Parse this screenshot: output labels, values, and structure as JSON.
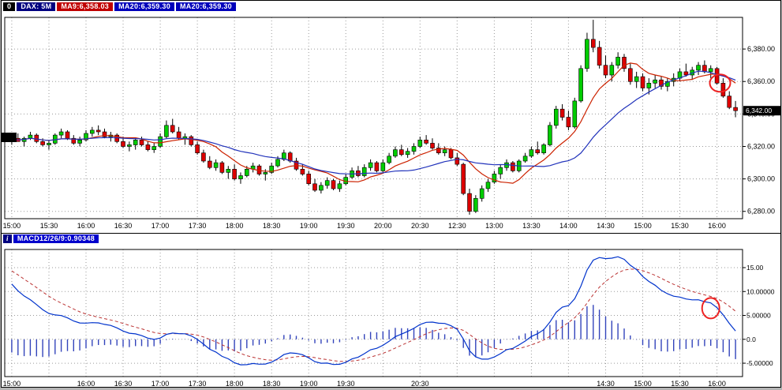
{
  "header": {
    "index_button": "0",
    "symbol": "DAX: 5M",
    "ma9": "MA9:6,358.03",
    "ma20": "MA20:6,359.30",
    "ma20b": "MA20:6,359.30"
  },
  "macd_header": {
    "icon": "i",
    "label": "MACD12/26/9:0.90348"
  },
  "chart_data": [
    {
      "type": "candlestick",
      "title": "DAX 5M intraday with MA9 / MA20",
      "x_labels": [
        "15:00",
        "15:30",
        "16:00",
        "16:30",
        "17:00",
        "17:30",
        "18:00",
        "18:30",
        "19:00",
        "19:30",
        "20:00",
        "20:30",
        "12:30",
        "13:00",
        "13:30",
        "14:00",
        "14:30",
        "15:00",
        "15:30",
        "16:00"
      ],
      "bars_per_label": 6,
      "y_ticks": [
        {
          "v": 6380,
          "label": "6,380.00"
        },
        {
          "v": 6360,
          "label": "6,360.00"
        },
        {
          "v": 6340,
          "label": "6,340.00"
        },
        {
          "v": 6320,
          "label": "6,320.00"
        },
        {
          "v": 6300,
          "label": "6,300.00"
        },
        {
          "v": 6280,
          "label": "6,280.00"
        }
      ],
      "ylim": [
        6275.5,
        6399.5
      ],
      "grid": true,
      "up_color": "#00cc00",
      "down_color": "#dd0000",
      "candles_ohlc": [
        [
          6324,
          6327,
          6321,
          6325
        ],
        [
          6325,
          6328,
          6323,
          6323
        ],
        [
          6323,
          6326,
          6320,
          6325
        ],
        [
          6325,
          6329,
          6324,
          6327
        ],
        [
          6327,
          6328,
          6322,
          6323
        ],
        [
          6323,
          6325,
          6320,
          6321
        ],
        [
          6321,
          6324,
          6318,
          6322
        ],
        [
          6322,
          6328,
          6321,
          6327
        ],
        [
          6327,
          6331,
          6325,
          6329
        ],
        [
          6329,
          6330,
          6324,
          6325
        ],
        [
          6325,
          6327,
          6321,
          6322
        ],
        [
          6322,
          6326,
          6320,
          6324
        ],
        [
          6324,
          6330,
          6323,
          6328
        ],
        [
          6328,
          6332,
          6326,
          6330
        ],
        [
          6330,
          6333,
          6327,
          6329
        ],
        [
          6329,
          6331,
          6325,
          6326
        ],
        [
          6326,
          6329,
          6323,
          6327
        ],
        [
          6327,
          6328,
          6322,
          6323
        ],
        [
          6323,
          6326,
          6319,
          6320
        ],
        [
          6320,
          6323,
          6317,
          6321
        ],
        [
          6321,
          6325,
          6318,
          6324
        ],
        [
          6324,
          6326,
          6320,
          6321
        ],
        [
          6321,
          6323,
          6317,
          6318
        ],
        [
          6318,
          6322,
          6316,
          6320
        ],
        [
          6320,
          6328,
          6319,
          6326
        ],
        [
          6326,
          6336,
          6325,
          6333
        ],
        [
          6333,
          6337,
          6328,
          6329
        ],
        [
          6329,
          6332,
          6324,
          6325
        ],
        [
          6325,
          6328,
          6321,
          6326
        ],
        [
          6326,
          6327,
          6320,
          6321
        ],
        [
          6321,
          6323,
          6315,
          6316
        ],
        [
          6316,
          6318,
          6310,
          6311
        ],
        [
          6311,
          6314,
          6306,
          6307
        ],
        [
          6307,
          6312,
          6305,
          6310
        ],
        [
          6310,
          6311,
          6303,
          6304
        ],
        [
          6304,
          6308,
          6300,
          6306
        ],
        [
          6306,
          6309,
          6299,
          6300
        ],
        [
          6300,
          6304,
          6297,
          6302
        ],
        [
          6302,
          6308,
          6301,
          6306
        ],
        [
          6306,
          6310,
          6304,
          6308
        ],
        [
          6308,
          6309,
          6302,
          6303
        ],
        [
          6303,
          6306,
          6299,
          6304
        ],
        [
          6304,
          6310,
          6303,
          6308
        ],
        [
          6308,
          6314,
          6307,
          6312
        ],
        [
          6312,
          6318,
          6311,
          6316
        ],
        [
          6316,
          6317,
          6310,
          6311
        ],
        [
          6311,
          6313,
          6305,
          6306
        ],
        [
          6306,
          6309,
          6302,
          6303
        ],
        [
          6303,
          6305,
          6296,
          6297
        ],
        [
          6297,
          6300,
          6292,
          6293
        ],
        [
          6293,
          6298,
          6291,
          6296
        ],
        [
          6296,
          6301,
          6294,
          6299
        ],
        [
          6299,
          6300,
          6293,
          6294
        ],
        [
          6294,
          6299,
          6292,
          6297
        ],
        [
          6297,
          6303,
          6296,
          6301
        ],
        [
          6301,
          6307,
          6300,
          6305
        ],
        [
          6305,
          6308,
          6301,
          6302
        ],
        [
          6302,
          6309,
          6301,
          6307
        ],
        [
          6307,
          6312,
          6305,
          6310
        ],
        [
          6310,
          6311,
          6304,
          6305
        ],
        [
          6305,
          6312,
          6304,
          6310
        ],
        [
          6310,
          6316,
          6309,
          6314
        ],
        [
          6314,
          6320,
          6313,
          6318
        ],
        [
          6318,
          6321,
          6314,
          6315
        ],
        [
          6315,
          6319,
          6313,
          6317
        ],
        [
          6317,
          6322,
          6315,
          6320
        ],
        [
          6320,
          6326,
          6319,
          6324
        ],
        [
          6324,
          6327,
          6321,
          6322
        ],
        [
          6322,
          6325,
          6318,
          6319
        ],
        [
          6319,
          6322,
          6315,
          6316
        ],
        [
          6316,
          6320,
          6314,
          6318
        ],
        [
          6318,
          6319,
          6312,
          6313
        ],
        [
          6313,
          6316,
          6308,
          6309
        ],
        [
          6309,
          6310,
          6290,
          6291
        ],
        [
          6291,
          6294,
          6278,
          6280
        ],
        [
          6280,
          6290,
          6279,
          6288
        ],
        [
          6288,
          6296,
          6286,
          6294
        ],
        [
          6294,
          6300,
          6292,
          6298
        ],
        [
          6298,
          6305,
          6297,
          6303
        ],
        [
          6303,
          6309,
          6300,
          6307
        ],
        [
          6307,
          6312,
          6305,
          6310
        ],
        [
          6310,
          6311,
          6304,
          6305
        ],
        [
          6305,
          6312,
          6304,
          6311
        ],
        [
          6311,
          6316,
          6310,
          6314
        ],
        [
          6314,
          6320,
          6313,
          6318
        ],
        [
          6318,
          6323,
          6315,
          6316
        ],
        [
          6316,
          6322,
          6315,
          6321
        ],
        [
          6321,
          6335,
          6320,
          6333
        ],
        [
          6333,
          6345,
          6331,
          6343
        ],
        [
          6343,
          6346,
          6336,
          6338
        ],
        [
          6338,
          6342,
          6330,
          6332
        ],
        [
          6332,
          6350,
          6331,
          6348
        ],
        [
          6348,
          6370,
          6347,
          6368
        ],
        [
          6368,
          6390,
          6366,
          6386
        ],
        [
          6386,
          6398,
          6378,
          6381
        ],
        [
          6381,
          6385,
          6368,
          6370
        ],
        [
          6370,
          6376,
          6362,
          6364
        ],
        [
          6364,
          6372,
          6360,
          6370
        ],
        [
          6370,
          6378,
          6368,
          6375
        ],
        [
          6375,
          6377,
          6366,
          6368
        ],
        [
          6368,
          6371,
          6358,
          6360
        ],
        [
          6360,
          6366,
          6356,
          6363
        ],
        [
          6363,
          6365,
          6354,
          6356
        ],
        [
          6356,
          6362,
          6352,
          6359
        ],
        [
          6359,
          6364,
          6356,
          6361
        ],
        [
          6361,
          6363,
          6355,
          6357
        ],
        [
          6357,
          6362,
          6354,
          6360
        ],
        [
          6360,
          6365,
          6357,
          6362
        ],
        [
          6362,
          6368,
          6360,
          6366
        ],
        [
          6366,
          6371,
          6363,
          6364
        ],
        [
          6364,
          6369,
          6361,
          6367
        ],
        [
          6367,
          6372,
          6364,
          6370
        ],
        [
          6370,
          6373,
          6365,
          6366
        ],
        [
          6366,
          6370,
          6362,
          6368
        ],
        [
          6368,
          6369,
          6358,
          6359
        ],
        [
          6359,
          6362,
          6350,
          6351
        ],
        [
          6351,
          6354,
          6343,
          6344
        ],
        [
          6344,
          6348,
          6338,
          6342
        ]
      ],
      "overlays": [
        {
          "name": "MA9",
          "period": 9,
          "color": "#cc2200"
        },
        {
          "name": "MA20",
          "period": 20,
          "color": "#2233bb"
        }
      ],
      "last_price_tag": {
        "value": 6342,
        "label": "6,342.00"
      },
      "annotation_circle": {
        "bar_index": 114.5,
        "price": 6359,
        "color": "#ee2222"
      }
    },
    {
      "type": "macd",
      "label": "MACD12/26/9:0.90348",
      "value": "0.90348",
      "params": {
        "fast": 12,
        "slow": 26,
        "signal": 9
      },
      "seeds": {
        "ema_fast": 6331,
        "ema_slow": 6318,
        "signal": 15
      },
      "y_ticks": [
        {
          "v": 15,
          "label": "15.00"
        },
        {
          "v": 10,
          "label": "10.00000"
        },
        {
          "v": 5,
          "label": "5.00000"
        },
        {
          "v": 0,
          "label": "0.0"
        },
        {
          "v": -5,
          "label": "-5.00000"
        }
      ],
      "ylim": [
        -7.8,
        18.8
      ],
      "x_labels_bottom": [
        "15:00",
        "",
        "16:00",
        "16:30",
        "17:00",
        "17:30",
        "18:00",
        "18:30",
        "19:00",
        "19:30",
        "",
        "20:30",
        "",
        "",
        "",
        "",
        "14:30",
        "15:00",
        "15:30",
        "16:00"
      ],
      "colors": {
        "macd_line": "#0033cc",
        "signal_line": "#bb3333",
        "histogram": "#3344bb"
      },
      "annotation_circle": {
        "bar_index": 113,
        "value": 6.5,
        "color": "#ee2222"
      }
    }
  ]
}
